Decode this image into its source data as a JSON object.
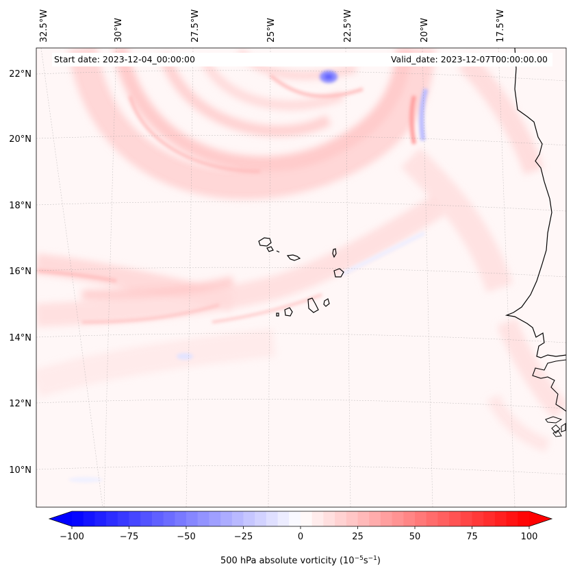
{
  "map": {
    "header_start": "Start date: 2023-12-04_00:00:00",
    "header_valid": "Valid_date: 2023-12-07T00:00:00.00",
    "lon_labels": [
      "32.5°W",
      "30°W",
      "27.5°W",
      "25°W",
      "22.5°W",
      "20°W",
      "17.5°W"
    ],
    "lat_labels": [
      "22°N",
      "20°N",
      "18°N",
      "16°N",
      "14°N",
      "12°N",
      "10°N"
    ],
    "colormap": "bwr",
    "colors": {
      "negative": "#0000ff",
      "neutral": "#ffffff",
      "positive": "#ff0000"
    }
  },
  "chart_data": {
    "type": "heatmap",
    "title": "Start date: 2023-12-04_00:00:00 / Valid_date: 2023-12-07T00:00:00.00",
    "variable": "500 hPa absolute vorticity",
    "colorbar": {
      "label": "500 hPa absolute vorticity (10",
      "label_exp1": "−5",
      "label_mid": "s",
      "label_exp2": "−1",
      "label_end": ")",
      "ticks": [
        "−100",
        "−75",
        "−50",
        "−25",
        "0",
        "25",
        "50",
        "75",
        "100"
      ],
      "tick_values": [
        -100,
        -75,
        -50,
        -25,
        0,
        25,
        50,
        75,
        100
      ],
      "vmin": -100,
      "vmax": 100,
      "extend": "both",
      "levels": 41
    },
    "lon_range": [
      -32.5,
      -15.5
    ],
    "lat_range": [
      9,
      22.8
    ]
  }
}
